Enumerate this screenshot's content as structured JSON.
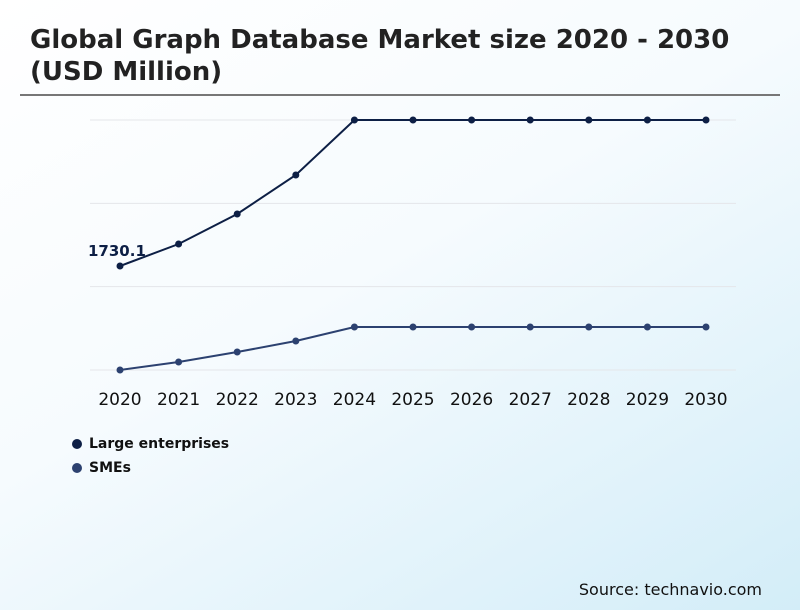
{
  "chart_data": {
    "type": "line",
    "title": "Global Graph Database Market size 2020 - 2030 (USD Million)",
    "xlabel": "",
    "ylabel": "",
    "categories": [
      "2020",
      "2021",
      "2022",
      "2023",
      "2024",
      "2025",
      "2026",
      "2027",
      "2028",
      "2029",
      "2030"
    ],
    "series": [
      {
        "name": "Large enterprises",
        "color": "#0d1f45",
        "values": [
          1730.1,
          2096,
          2595,
          3244,
          4159,
          4159,
          4159,
          4159,
          4159,
          4159,
          4159
        ]
      },
      {
        "name": "SMEs",
        "color": "#2c4170",
        "values": [
          0,
          133,
          299,
          482,
          715,
          715,
          715,
          715,
          715,
          715,
          715
        ]
      }
    ],
    "annotations": [
      {
        "series": 0,
        "index": 0,
        "text": "1730.1"
      }
    ],
    "ylim": [
      0,
      4159
    ],
    "grid": true,
    "legend": "bottom-left"
  },
  "source": "Source: technavio.com"
}
